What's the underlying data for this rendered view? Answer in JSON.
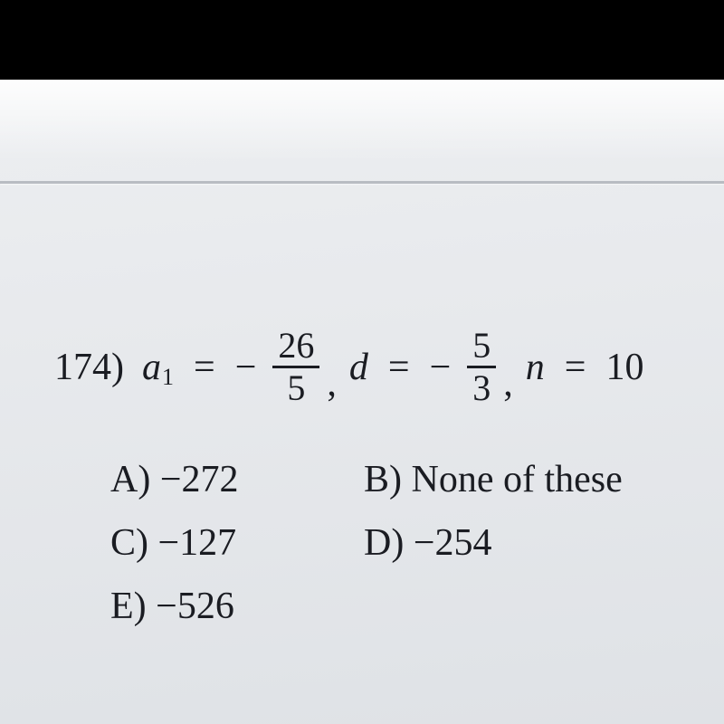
{
  "question": {
    "number": "174)",
    "a1_var": "a",
    "a1_sub": "1",
    "a1_num": "26",
    "a1_den": "5",
    "d_var": "d",
    "d_num": "5",
    "d_den": "3",
    "n_var": "n",
    "n_val": "10",
    "eq": "=",
    "neg": "−",
    "comma": ","
  },
  "choices": {
    "a_label": "A)",
    "a_val": "−272",
    "b_label": "B)",
    "b_val": "None of these",
    "c_label": "C)",
    "c_val": "−127",
    "d_label": "D)",
    "d_val": "−254",
    "e_label": "E)",
    "e_val": "−526"
  }
}
